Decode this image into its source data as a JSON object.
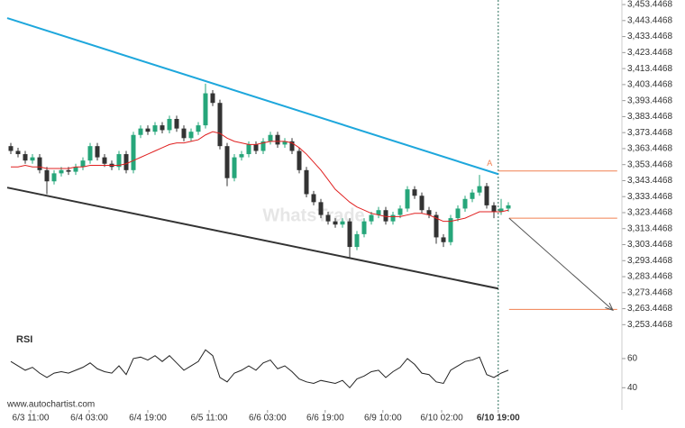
{
  "chart_data": {
    "type": "candlestick",
    "watermark": "WhatsTrade",
    "source": "www.autochartist.com",
    "xlim": [
      -0.5,
      84.75
    ],
    "ylim": [
      3248,
      3456.3
    ],
    "xticks": [
      {
        "value": 2.75,
        "label": "6/3 11:00"
      },
      {
        "value": 10.875,
        "label": "6/4 03:00"
      },
      {
        "value": 19,
        "label": "6/4 19:00"
      },
      {
        "value": 27.5,
        "label": "6/5 11:00"
      },
      {
        "value": 35.6,
        "label": "6/6 03:00"
      },
      {
        "value": 43.6,
        "label": "6/6 19:00"
      },
      {
        "value": 51.6,
        "label": "6/9 10:00"
      },
      {
        "value": 59.75,
        "label": "6/10 02:00"
      },
      {
        "value": 67.6,
        "label": "6/10 19:00"
      }
    ],
    "yticks": [
      {
        "value": 3453.4468,
        "label": "3,453.4468"
      },
      {
        "value": 3443.4468,
        "label": "3,443.4468"
      },
      {
        "value": 3433.4468,
        "label": "3,433.4468"
      },
      {
        "value": 3423.4468,
        "label": "3,423.4468"
      },
      {
        "value": 3413.4468,
        "label": "3,413.4468"
      },
      {
        "value": 3403.4468,
        "label": "3,403.4468"
      },
      {
        "value": 3393.4468,
        "label": "3,393.4468"
      },
      {
        "value": 3383.4468,
        "label": "3,383.4468"
      },
      {
        "value": 3373.4468,
        "label": "3,373.4468"
      },
      {
        "value": 3363.4468,
        "label": "3,363.4468"
      },
      {
        "value": 3353.4468,
        "label": "3,353.4468"
      },
      {
        "value": 3343.4468,
        "label": "3,343.4468"
      },
      {
        "value": 3333.4468,
        "label": "3,333.4468"
      },
      {
        "value": 3323.4468,
        "label": "3,323.4468"
      },
      {
        "value": 3313.4468,
        "label": "3,313.4468"
      },
      {
        "value": 3303.4468,
        "label": "3,303.4468"
      },
      {
        "value": 3293.4468,
        "label": "3,293.4468"
      },
      {
        "value": 3283.4468,
        "label": "3,283.4468"
      },
      {
        "value": 3273.4468,
        "label": "3,273.4468"
      },
      {
        "value": 3263.4468,
        "label": "3,263.4468"
      },
      {
        "value": 3253.4468,
        "label": "3,253.4468"
      }
    ],
    "candles": {
      "up_color": "#26a67a",
      "down_color": "#333333",
      "open": [
        3365,
        3362,
        3360,
        3356,
        3358,
        3350,
        3343,
        3348,
        3350,
        3349,
        3352,
        3356,
        3365,
        3358,
        3354,
        3352,
        3360,
        3350,
        3372,
        3376,
        3374,
        3378,
        3375,
        3382,
        3376,
        3370,
        3374,
        3378,
        3398,
        3392,
        3365,
        3345,
        3358,
        3360,
        3366,
        3362,
        3368,
        3372,
        3366,
        3368,
        3362,
        3350,
        3335,
        3330,
        3322,
        3318,
        3316,
        3318,
        3302,
        3310,
        3318,
        3322,
        3325,
        3318,
        3322,
        3326,
        3338,
        3334,
        3325,
        3322,
        3308,
        3305,
        3320,
        3326,
        3332,
        3336,
        3340,
        3328,
        3324,
        3326
      ],
      "high": [
        3367,
        3364,
        3362,
        3360,
        3360,
        3352,
        3350,
        3352,
        3352,
        3354,
        3358,
        3367,
        3367,
        3360,
        3356,
        3362,
        3362,
        3374,
        3378,
        3378,
        3380,
        3380,
        3384,
        3384,
        3378,
        3376,
        3380,
        3404,
        3400,
        3394,
        3367,
        3360,
        3362,
        3368,
        3368,
        3370,
        3374,
        3374,
        3370,
        3370,
        3364,
        3352,
        3337,
        3332,
        3324,
        3320,
        3320,
        3320,
        3312,
        3320,
        3324,
        3327,
        3327,
        3324,
        3328,
        3340,
        3340,
        3336,
        3327,
        3324,
        3310,
        3322,
        3328,
        3334,
        3338,
        3347,
        3342,
        3330,
        3332,
        3330
      ],
      "low": [
        3360,
        3358,
        3354,
        3354,
        3348,
        3335,
        3341,
        3346,
        3347,
        3347,
        3350,
        3354,
        3356,
        3352,
        3350,
        3350,
        3348,
        3348,
        3370,
        3372,
        3372,
        3373,
        3373,
        3374,
        3368,
        3368,
        3372,
        3376,
        3390,
        3363,
        3340,
        3343,
        3356,
        3358,
        3360,
        3360,
        3366,
        3364,
        3364,
        3360,
        3348,
        3333,
        3328,
        3320,
        3316,
        3314,
        3314,
        3295,
        3300,
        3308,
        3316,
        3320,
        3316,
        3316,
        3320,
        3324,
        3332,
        3323,
        3320,
        3304,
        3302,
        3303,
        3318,
        3324,
        3330,
        3334,
        3326,
        3320,
        3322,
        3324
      ],
      "close": [
        3362,
        3360,
        3356,
        3358,
        3350,
        3343,
        3348,
        3350,
        3349,
        3352,
        3356,
        3365,
        3358,
        3354,
        3352,
        3360,
        3350,
        3372,
        3376,
        3374,
        3378,
        3375,
        3382,
        3376,
        3370,
        3374,
        3378,
        3398,
        3392,
        3365,
        3345,
        3358,
        3360,
        3366,
        3362,
        3368,
        3372,
        3366,
        3368,
        3362,
        3350,
        3335,
        3330,
        3322,
        3318,
        3316,
        3318,
        3302,
        3310,
        3318,
        3322,
        3325,
        3318,
        3322,
        3326,
        3338,
        3334,
        3325,
        3322,
        3308,
        3305,
        3320,
        3326,
        3332,
        3336,
        3340,
        3328,
        3324,
        3326,
        3328
      ]
    },
    "moving_average": {
      "color": "#e02020",
      "values": [
        3352,
        3352,
        3353,
        3352,
        3352,
        3351,
        3351,
        3351,
        3351,
        3352,
        3352,
        3353,
        3353,
        3353,
        3353,
        3353,
        3354,
        3356,
        3358,
        3360,
        3362,
        3364,
        3366,
        3367,
        3367,
        3368,
        3369,
        3372,
        3374,
        3373,
        3370,
        3368,
        3367,
        3366,
        3366,
        3367,
        3368,
        3368,
        3368,
        3367,
        3364,
        3360,
        3355,
        3350,
        3344,
        3338,
        3334,
        3330,
        3327,
        3325,
        3323,
        3322,
        3321,
        3321,
        3321,
        3322,
        3323,
        3323,
        3322,
        3320,
        3318,
        3318,
        3319,
        3320,
        3322,
        3324,
        3324,
        3324,
        3324,
        3325
      ]
    },
    "trend_lines": [
      {
        "color": "#1ea7dc",
        "x": [
          -0.5,
          67.6
        ],
        "y": [
          3445,
          3347.5
        ]
      },
      {
        "color": "#333333",
        "x": [
          -0.5,
          67.6
        ],
        "y": [
          3339.1,
          3276
        ]
      }
    ],
    "levels": [
      {
        "color": "#f08050",
        "value": 3349.5,
        "x": [
          67.6,
          84.1
        ]
      },
      {
        "color": "#f08050",
        "value": 3320,
        "x": [
          69.1,
          84.1
        ]
      },
      {
        "color": "#f08050",
        "value": 3263,
        "x": [
          69.1,
          84.1
        ]
      }
    ],
    "marker": {
      "label": "A",
      "x": 66.4,
      "y": 3354,
      "color": "#f08050"
    },
    "event_x": 67.6,
    "projection": {
      "color": "#555555",
      "x": [
        69.1,
        83.5
      ],
      "y": [
        3320,
        3262.5
      ]
    },
    "rsi": {
      "title": "RSI",
      "color": "#222222",
      "ylim": [
        34,
        68
      ],
      "yticks": [
        40,
        60
      ],
      "values": [
        58,
        55,
        52,
        54,
        50,
        47,
        50,
        51,
        50,
        52,
        54,
        57,
        53,
        51,
        50,
        55,
        49,
        60,
        61,
        59,
        62,
        58,
        62,
        57,
        52,
        55,
        58,
        66,
        62,
        47,
        44,
        50,
        52,
        55,
        52,
        57,
        59,
        53,
        55,
        51,
        46,
        44,
        43,
        45,
        44,
        43,
        45,
        40,
        46,
        48,
        51,
        52,
        47,
        51,
        54,
        60,
        56,
        50,
        49,
        44,
        43,
        52,
        55,
        58,
        59,
        61,
        49,
        47,
        50,
        52
      ]
    }
  }
}
